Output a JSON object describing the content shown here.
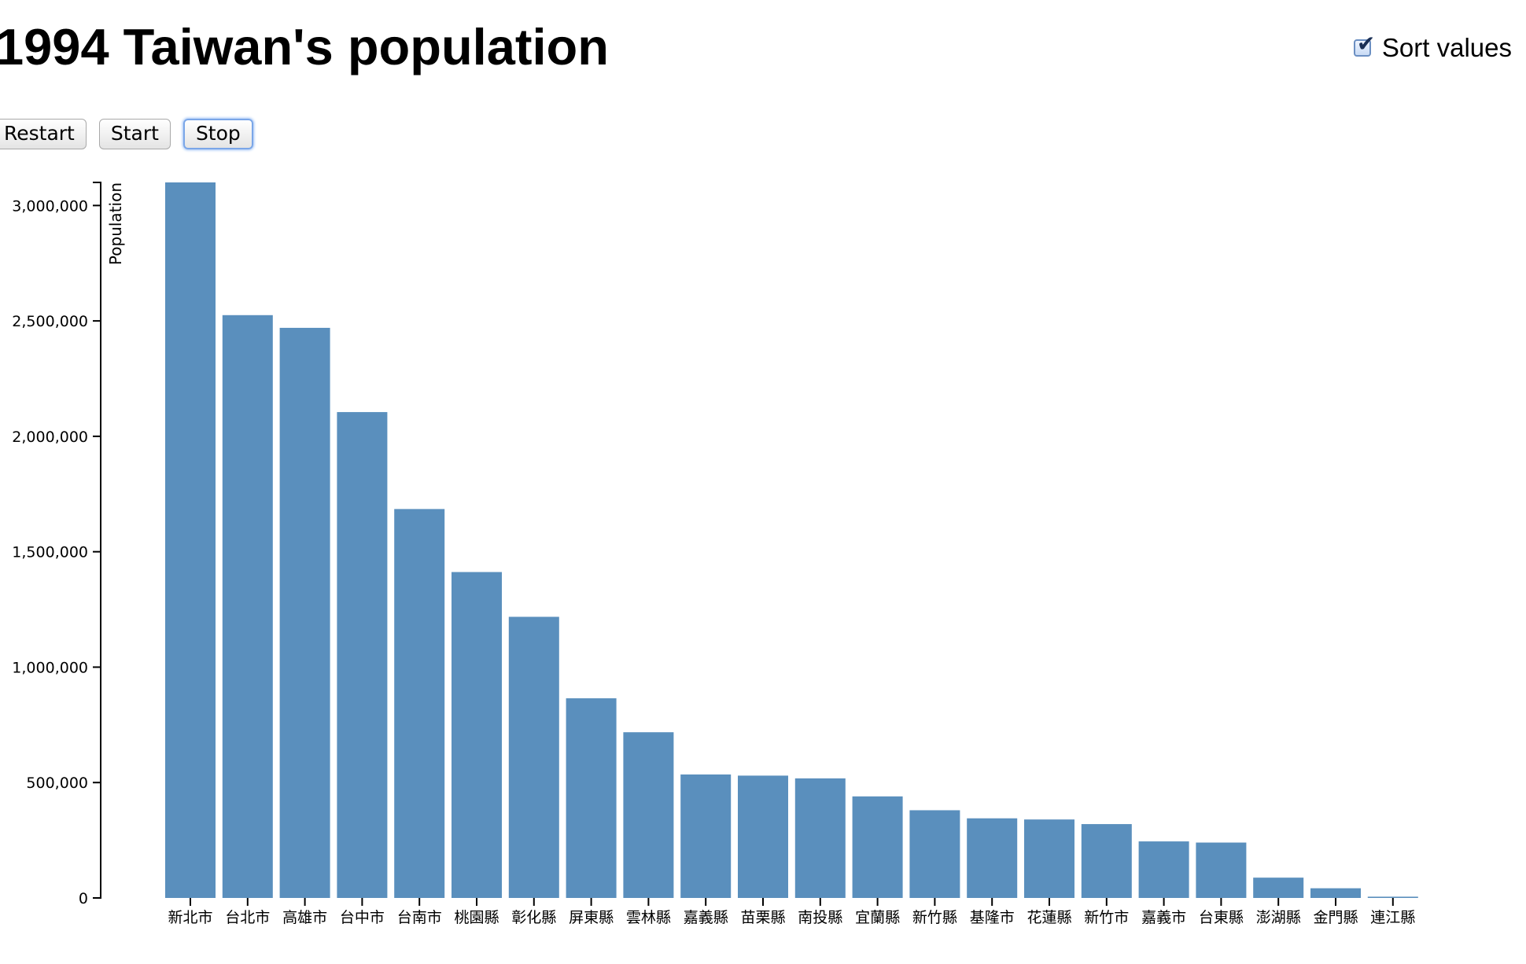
{
  "header": {
    "title": "1994 Taiwan's population",
    "sort_label": "Sort values",
    "sort_checked": true
  },
  "controls": {
    "restart_label": "Restart",
    "start_label": "Start",
    "stop_label": "Stop"
  },
  "colors": {
    "bar": "#5a8fbd"
  },
  "chart_data": {
    "type": "bar",
    "ylabel": "Population",
    "ylim": [
      0,
      3100000
    ],
    "yticks": [
      0,
      500000,
      1000000,
      1500000,
      2000000,
      2500000,
      3000000
    ],
    "ytick_labels": [
      "0",
      "500,000",
      "1,000,000",
      "1,500,000",
      "2,000,000",
      "2,500,000",
      "3,000,000"
    ],
    "categories": [
      "新北市",
      "台北市",
      "高雄市",
      "台中市",
      "台南市",
      "桃園縣",
      "彰化縣",
      "屏東縣",
      "雲林縣",
      "嘉義縣",
      "苗栗縣",
      "南投縣",
      "宜蘭縣",
      "新竹縣",
      "基隆市",
      "花蓮縣",
      "新竹市",
      "嘉義市",
      "台東縣",
      "澎湖縣",
      "金門縣",
      "連江縣"
    ],
    "values": [
      3100000,
      2525000,
      2470000,
      2105000,
      1685000,
      1412000,
      1218000,
      865000,
      718000,
      535000,
      530000,
      518000,
      440000,
      380000,
      345000,
      340000,
      320000,
      245000,
      240000,
      88000,
      42000,
      5500
    ]
  }
}
